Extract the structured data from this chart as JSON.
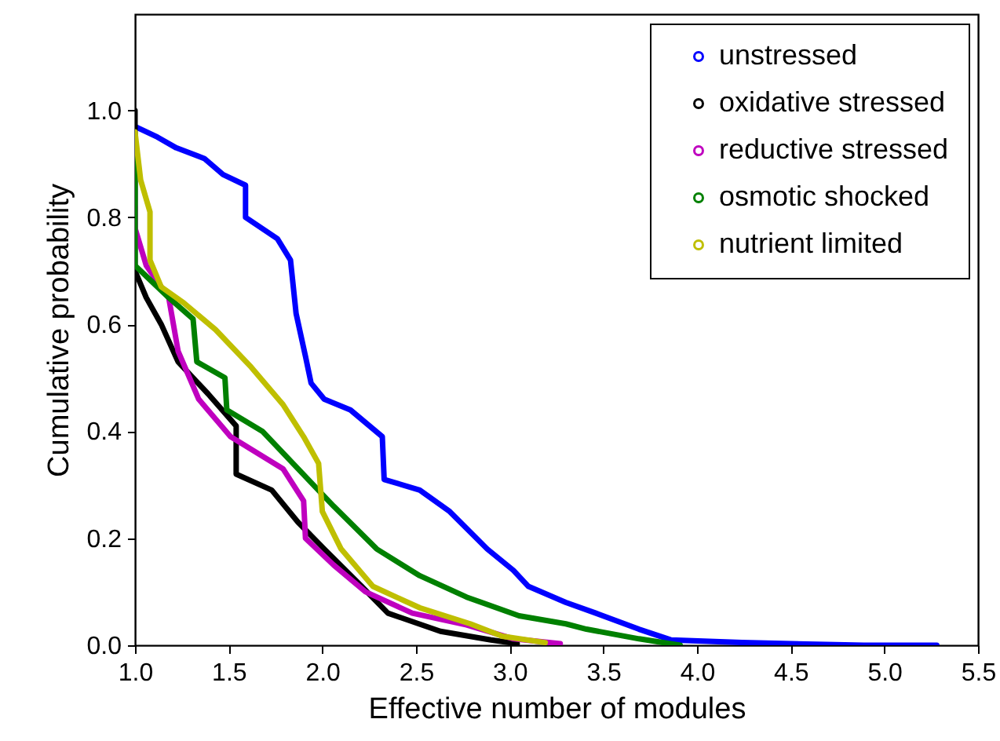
{
  "chart_data": {
    "type": "line",
    "xlabel": "Effective number of modules",
    "ylabel": "Cumulative probability",
    "xlim": [
      1.0,
      5.5
    ],
    "ylim": [
      0,
      1.18
    ],
    "xticks": [
      {
        "value": 1,
        "label": "1.0"
      },
      {
        "value": 1.5,
        "label": "1.5"
      },
      {
        "value": 2,
        "label": "2.0"
      },
      {
        "value": 2.5,
        "label": "2.5"
      },
      {
        "value": 3,
        "label": "3.0"
      },
      {
        "value": 3.5,
        "label": "3.5"
      },
      {
        "value": 4,
        "label": "4.0"
      },
      {
        "value": 4.5,
        "label": "4.5"
      },
      {
        "value": 5,
        "label": "5.0"
      },
      {
        "value": 5.5,
        "label": "5.5"
      }
    ],
    "yticks": [
      {
        "value": 0,
        "label": "0.0"
      },
      {
        "value": 0.2,
        "label": "0.2"
      },
      {
        "value": 0.4,
        "label": "0.4"
      },
      {
        "value": 0.6,
        "label": "0.6"
      },
      {
        "value": 0.8,
        "label": "0.8"
      },
      {
        "value": 1,
        "label": "1.0"
      }
    ],
    "grid": false,
    "legend": "top right",
    "series": [
      {
        "name": "unstressed",
        "color": "#0000ff",
        "x": [
          1.0,
          1.12,
          1.22,
          1.37,
          1.47,
          1.59,
          1.59,
          1.76,
          1.83,
          1.86,
          1.91,
          1.94,
          2.01,
          2.15,
          2.32,
          2.33,
          2.52,
          2.68,
          2.88,
          3.02,
          3.1,
          3.3,
          3.46,
          3.69,
          3.86,
          4.24,
          4.89,
          5.28
        ],
        "values": [
          0.97,
          0.95,
          0.93,
          0.91,
          0.88,
          0.86,
          0.8,
          0.76,
          0.72,
          0.62,
          0.54,
          0.49,
          0.46,
          0.44,
          0.39,
          0.31,
          0.29,
          0.25,
          0.18,
          0.14,
          0.11,
          0.08,
          0.06,
          0.03,
          0.01,
          0.005,
          0.0,
          0.0
        ]
      },
      {
        "name": "oxidative stressed",
        "color": "#000000",
        "x": [
          1.0,
          1.0,
          1.06,
          1.14,
          1.23,
          1.39,
          1.54,
          1.54,
          1.73,
          1.87,
          2.01,
          2.21,
          2.35,
          2.63,
          2.9,
          3.04
        ],
        "values": [
          1.0,
          0.7,
          0.65,
          0.6,
          0.53,
          0.47,
          0.41,
          0.32,
          0.29,
          0.23,
          0.18,
          0.11,
          0.06,
          0.026,
          0.01,
          0.003
        ]
      },
      {
        "name": "reductive stressed",
        "color": "#bf00bf",
        "x": [
          1.0,
          1.0,
          1.06,
          1.18,
          1.23,
          1.34,
          1.51,
          1.79,
          1.9,
          1.91,
          2.06,
          2.23,
          2.48,
          2.77,
          3.02,
          3.27
        ],
        "values": [
          0.82,
          0.78,
          0.71,
          0.65,
          0.55,
          0.46,
          0.39,
          0.33,
          0.27,
          0.2,
          0.15,
          0.1,
          0.06,
          0.038,
          0.012,
          0.003
        ]
      },
      {
        "name": "osmotic shocked",
        "color": "#008000",
        "x": [
          1.0,
          1.0,
          1.06,
          1.18,
          1.31,
          1.33,
          1.48,
          1.49,
          1.68,
          1.87,
          2.06,
          2.29,
          2.52,
          2.77,
          3.05,
          3.3,
          3.41,
          3.69,
          3.91
        ],
        "values": [
          0.91,
          0.71,
          0.69,
          0.65,
          0.61,
          0.53,
          0.5,
          0.44,
          0.4,
          0.33,
          0.26,
          0.18,
          0.13,
          0.09,
          0.055,
          0.04,
          0.03,
          0.012,
          0.0
        ]
      },
      {
        "name": "nutrient limited",
        "color": "#bfbf00",
        "x": [
          1.0,
          1.03,
          1.08,
          1.08,
          1.14,
          1.26,
          1.43,
          1.62,
          1.79,
          1.9,
          1.98,
          2.0,
          2.1,
          2.27,
          2.52,
          2.79,
          2.96,
          3.19
        ],
        "values": [
          0.96,
          0.87,
          0.81,
          0.72,
          0.67,
          0.64,
          0.59,
          0.52,
          0.45,
          0.39,
          0.34,
          0.25,
          0.18,
          0.11,
          0.07,
          0.04,
          0.017,
          0.005
        ]
      }
    ]
  }
}
